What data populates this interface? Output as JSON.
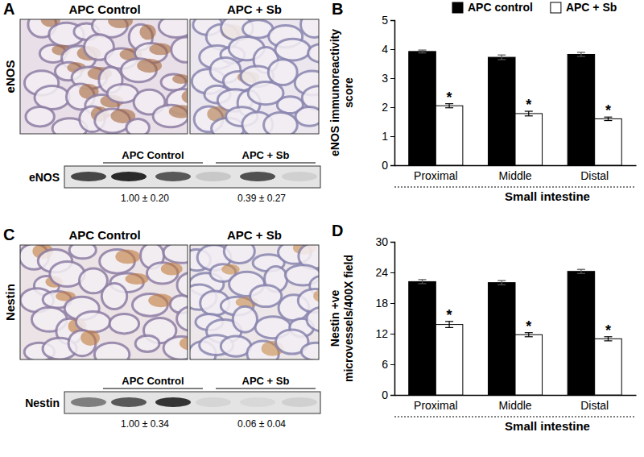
{
  "chart_data": [
    {
      "type": "bar",
      "panel": "B",
      "categories": [
        "Proximal",
        "Middle",
        "Distal"
      ],
      "x_label": "Small intestine",
      "y_label": "eNOS immunoreactivity score",
      "ylim": [
        0,
        5
      ],
      "yticks": [
        0,
        1,
        2,
        3,
        4,
        5
      ],
      "legend": "top",
      "series": [
        {
          "name": "APC control",
          "color": "#000000",
          "values": [
            3.92,
            3.72,
            3.82
          ],
          "errors": [
            0.05,
            0.08,
            0.07
          ]
        },
        {
          "name": "APC + Sb",
          "color": "#ffffff",
          "values": [
            2.05,
            1.78,
            1.6
          ],
          "errors": [
            0.07,
            0.08,
            0.06
          ],
          "annotations": [
            "*",
            "*",
            "*"
          ]
        }
      ]
    },
    {
      "type": "bar",
      "panel": "D",
      "categories": [
        "Proximal",
        "Middle",
        "Distal"
      ],
      "x_label": "Small intestine",
      "y_label": "Nestin +ve microvessels/400X field",
      "ylim": [
        0,
        30
      ],
      "yticks": [
        0,
        6,
        12,
        18,
        24,
        30
      ],
      "series": [
        {
          "color": "#000000",
          "values": [
            22.2,
            22.0,
            24.2
          ],
          "errors": [
            0.4,
            0.4,
            0.4
          ]
        },
        {
          "color": "#ffffff",
          "values": [
            13.8,
            11.8,
            11.0
          ],
          "errors": [
            0.6,
            0.4,
            0.4
          ],
          "annotations": [
            "*",
            "*",
            "*"
          ]
        }
      ]
    }
  ],
  "image_panels": [
    {
      "panel": "A",
      "row_label": "eNOS",
      "image_titles": [
        "APC Control",
        "APC + Sb"
      ],
      "blot": {
        "label": "eNOS",
        "groups": [
          "APC Control",
          "APC + Sb"
        ],
        "quantification": [
          "1.00 ± 0.20",
          "0.39 ± 0.27"
        ]
      }
    },
    {
      "panel": "C",
      "row_label": "Nestin",
      "image_titles": [
        "APC Control",
        "APC + Sb"
      ],
      "blot": {
        "label": "Nestin",
        "groups": [
          "APC Control",
          "APC + Sb"
        ],
        "quantification": [
          "1.00 ± 0.34",
          "0.06 ± 0.04"
        ]
      }
    }
  ]
}
